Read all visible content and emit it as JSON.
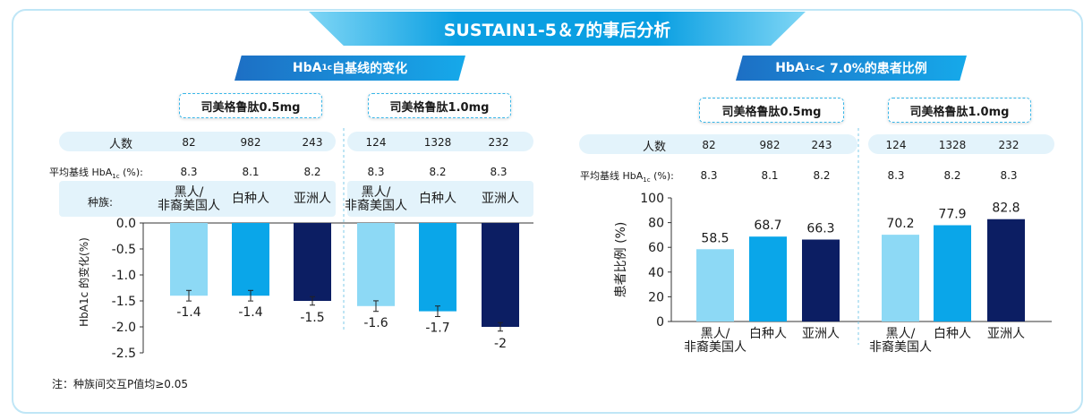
{
  "title": "SUSTAIN1-5＆7的事后分析",
  "left_section": {
    "title": "HbA",
    "sub": "1c",
    "rest": "自基线的变化"
  },
  "right_section": {
    "title": "HbA",
    "sub": "1c",
    "rest": " < 7.0%的患者比例"
  },
  "dose_labels": [
    "司美格鲁肽0.5mg",
    "司美格鲁肽1.0mg"
  ],
  "rows": {
    "n_label": "人数",
    "baseline_label_pre": "平均基线 HbA",
    "baseline_label_sub": "1c",
    "baseline_label_post": " (%):",
    "ethnicity_label": "种族:"
  },
  "groups": [
    {
      "dose": "0.5mg",
      "n": [
        "82",
        "982",
        "243"
      ],
      "baseline": [
        "8.3",
        "8.1",
        "8.2"
      ]
    },
    {
      "dose": "1.0mg",
      "n": [
        "124",
        "1328",
        "232"
      ],
      "baseline": [
        "8.3",
        "8.2",
        "8.3"
      ]
    }
  ],
  "ethnicities": [
    "黑人/\n非裔美国人",
    "白种人",
    "亚洲人"
  ],
  "colors": {
    "light": "#8dd9f5",
    "mid": "#0aa6e9",
    "dark": "#0c1e63",
    "banner": "#0a9fe2"
  },
  "note": "注：种族间交互P值均≥0.05",
  "chart_data": [
    {
      "type": "bar",
      "title": "HbA1c自基线的变化",
      "ylabel": "HbA1c 的变化(%)",
      "ylim": [
        -2.5,
        0.0
      ],
      "yticks": [
        "0.0",
        "-0.5",
        "-1.0",
        "-1.5",
        "-2.0",
        "-2.5"
      ],
      "categories": [
        "黑人/非裔美国人",
        "白种人",
        "亚洲人"
      ],
      "series": [
        {
          "name": "司美格鲁肽0.5mg",
          "values": [
            -1.4,
            -1.4,
            -1.5
          ],
          "labels": [
            "-1.4",
            "-1.4",
            "-1.5"
          ],
          "error": [
            0.05,
            0.05,
            0.03
          ]
        },
        {
          "name": "司美格鲁肽1.0mg",
          "values": [
            -1.6,
            -1.7,
            -2.0
          ],
          "labels": [
            "-1.6",
            "-1.7",
            "-2"
          ],
          "error": [
            0.05,
            0.05,
            0.03
          ]
        }
      ]
    },
    {
      "type": "bar",
      "title": "HbA1c < 7.0%的患者比例",
      "ylabel": "患者比例 (%)",
      "ylim": [
        0,
        100
      ],
      "yticks": [
        "100",
        "80",
        "60",
        "40",
        "20",
        "0"
      ],
      "categories": [
        "黑人/非裔美国人",
        "白种人",
        "亚洲人"
      ],
      "series": [
        {
          "name": "司美格鲁肽0.5mg",
          "values": [
            58.5,
            68.7,
            66.3
          ],
          "labels": [
            "58.5",
            "68.7",
            "66.3"
          ]
        },
        {
          "name": "司美格鲁肽1.0mg",
          "values": [
            70.2,
            77.9,
            82.8
          ],
          "labels": [
            "70.2",
            "77.9",
            "82.8"
          ]
        }
      ]
    }
  ]
}
